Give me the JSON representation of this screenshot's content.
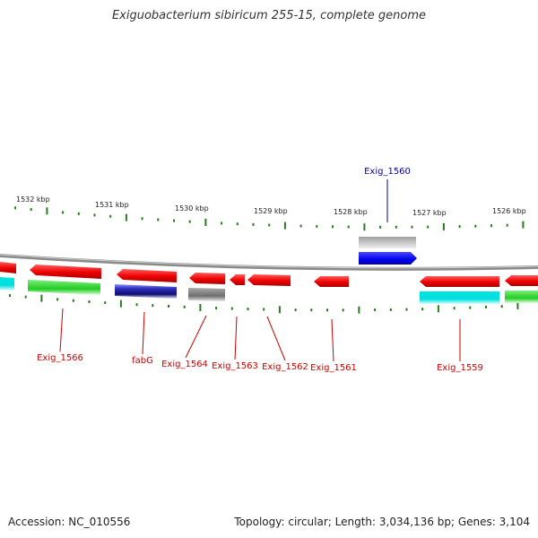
{
  "title": "Exiguobacterium sibiricum 255-15, complete genome",
  "footer": {
    "accession": "Accession: NC_010556",
    "summary": "Topology: circular; Length: 3,034,136 bp; Genes: 3,104"
  },
  "colors": {
    "backbone": "#8a8a8a",
    "tick": "#2a7a1f",
    "cds": "#ee0000",
    "label_red": "#cc0000",
    "label_blue": "#0000aa",
    "green": "#22cc22",
    "cyan": "#00dddd",
    "navy": "#1a1a8a",
    "gray": "#777777",
    "blue": "#0000ee",
    "lightgray": "#bbbbbb"
  },
  "ticks": [
    {
      "label": "1532 kbp"
    },
    {
      "label": "1531 kbp"
    },
    {
      "label": "1530 kbp"
    },
    {
      "label": "1529 kbp"
    },
    {
      "label": "1528 kbp"
    },
    {
      "label": "1527 kbp"
    },
    {
      "label": "1526 kbp"
    }
  ],
  "genes": [
    {
      "label": "Exig_1566"
    },
    {
      "label": "fabG"
    },
    {
      "label": "Exig_1564"
    },
    {
      "label": "Exig_1563"
    },
    {
      "label": "Exig_1562"
    },
    {
      "label": "Exig_1561"
    },
    {
      "label": "Exig_1560"
    },
    {
      "label": "Exig_1559"
    }
  ]
}
